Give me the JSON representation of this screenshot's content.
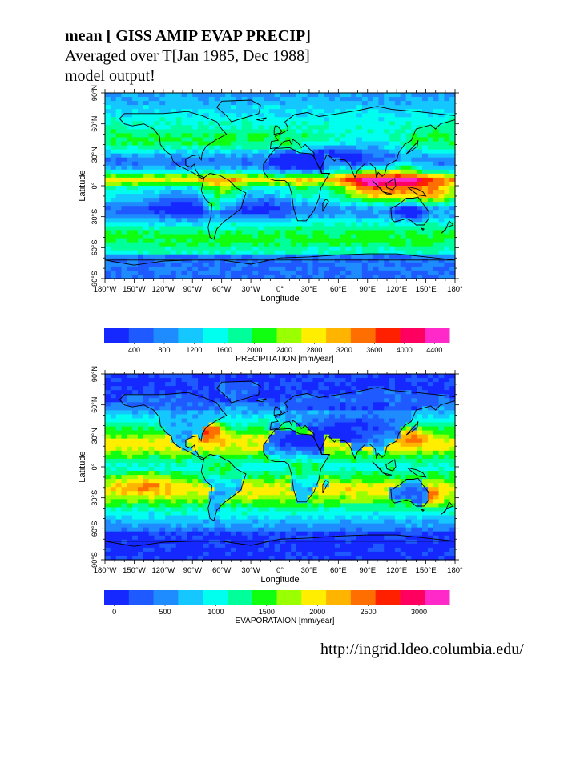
{
  "header": {
    "line1": "mean [ GISS AMIP EVAP PRECIP]",
    "line2": "Averaged over T[Jan 1985, Dec 1988]",
    "line3": "model output!"
  },
  "axes": {
    "lon_ticks": [
      "180°W",
      "150°W",
      "120°W",
      "90°W",
      "60°W",
      "30°W",
      "0°",
      "30°E",
      "60°E",
      "90°E",
      "120°E",
      "150°E",
      "180°"
    ],
    "lat_ticks": [
      "90°N",
      "60°N",
      "30°N",
      "0°",
      "30°S",
      "60°S",
      "90°S"
    ],
    "xlabel": "Longitude",
    "ylabel": "Latitude"
  },
  "maps": [
    {
      "name": "precipitation",
      "colorbar_label": "PRECIPITATION [mm/year]",
      "colorbar_ticks": [
        "400",
        "800",
        "1200",
        "1600",
        "2000",
        "2400",
        "2800",
        "3200",
        "3600",
        "4000",
        "4400"
      ],
      "colorbar_range": [
        0,
        4600
      ]
    },
    {
      "name": "evaporation",
      "colorbar_label": "EVAPORATAION [mm/year]",
      "colorbar_ticks": [
        "0",
        "500",
        "1000",
        "1500",
        "2000",
        "2500",
        "3000"
      ],
      "colorbar_range": [
        -100,
        3300
      ]
    }
  ],
  "colors": {
    "palette": [
      "#1428ff",
      "#1e5aff",
      "#1e8cff",
      "#14c8ff",
      "#00ffee",
      "#00ff9a",
      "#10ff10",
      "#9aff00",
      "#ffee00",
      "#ffb400",
      "#ff6e00",
      "#ff2000",
      "#ff0060",
      "#ff28c8"
    ]
  },
  "footer": {
    "url": "http://ingrid.ldeo.columbia.edu/"
  }
}
